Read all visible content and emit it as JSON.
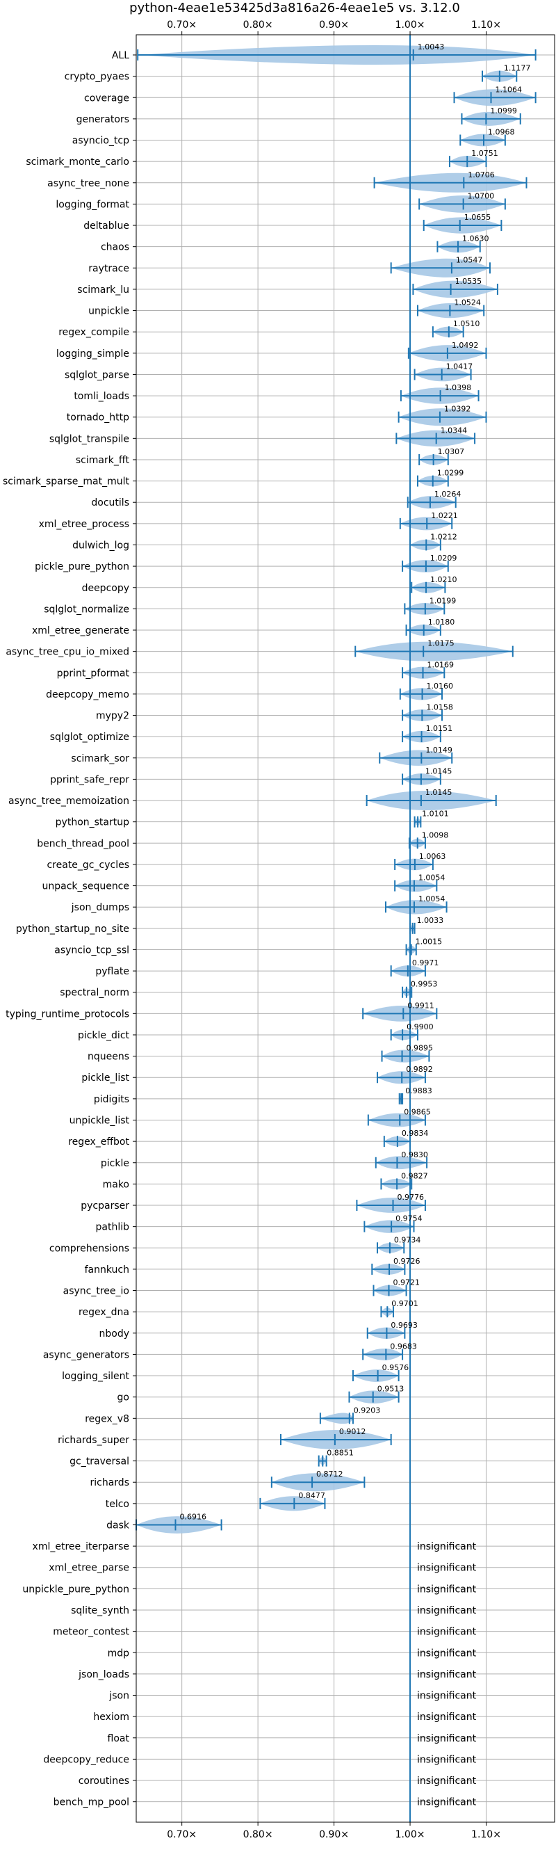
{
  "chart_data": {
    "type": "violin",
    "title": "python-4eae1e53425d3a816a26-4eae1e5 vs. 3.12.0",
    "xlabel": "",
    "ylabel": "",
    "x_tick_labels": [
      "0.70×",
      "0.80×",
      "0.90×",
      "1.00×",
      "1.10×"
    ],
    "x_ticks": [
      0.7,
      0.8,
      0.9,
      1.0,
      1.1
    ],
    "xlim": [
      0.64,
      1.19
    ],
    "reference_line": 1.0,
    "grid": true,
    "colors": {
      "line": "#1f77b4",
      "violin": "#a6c8e6",
      "grid": "#b0b0b0"
    },
    "insignificant_label": "insignificant",
    "benchmarks": [
      {
        "name": "ALL",
        "value": 1.0043,
        "min": 0.642,
        "max": 1.165
      },
      {
        "name": "crypto_pyaes",
        "value": 1.1177,
        "min": 1.095,
        "max": 1.14
      },
      {
        "name": "coverage",
        "value": 1.1064,
        "min": 1.058,
        "max": 1.165
      },
      {
        "name": "generators",
        "value": 1.0999,
        "min": 1.068,
        "max": 1.145
      },
      {
        "name": "asyncio_tcp",
        "value": 1.0968,
        "min": 1.066,
        "max": 1.125
      },
      {
        "name": "scimark_monte_carlo",
        "value": 1.0751,
        "min": 1.052,
        "max": 1.1
      },
      {
        "name": "async_tree_none",
        "value": 1.0706,
        "min": 0.953,
        "max": 1.153
      },
      {
        "name": "logging_format",
        "value": 1.07,
        "min": 1.012,
        "max": 1.125
      },
      {
        "name": "deltablue",
        "value": 1.0655,
        "min": 1.018,
        "max": 1.12
      },
      {
        "name": "chaos",
        "value": 1.063,
        "min": 1.036,
        "max": 1.092
      },
      {
        "name": "raytrace",
        "value": 1.0547,
        "min": 0.975,
        "max": 1.105
      },
      {
        "name": "scimark_lu",
        "value": 1.0535,
        "min": 1.004,
        "max": 1.115
      },
      {
        "name": "unpickle",
        "value": 1.0524,
        "min": 1.01,
        "max": 1.097
      },
      {
        "name": "regex_compile",
        "value": 1.051,
        "min": 1.03,
        "max": 1.07
      },
      {
        "name": "logging_simple",
        "value": 1.0492,
        "min": 0.998,
        "max": 1.1
      },
      {
        "name": "sqlglot_parse",
        "value": 1.0417,
        "min": 1.006,
        "max": 1.08
      },
      {
        "name": "tomli_loads",
        "value": 1.0398,
        "min": 0.988,
        "max": 1.09
      },
      {
        "name": "tornado_http",
        "value": 1.0392,
        "min": 0.985,
        "max": 1.1
      },
      {
        "name": "sqlglot_transpile",
        "value": 1.0344,
        "min": 0.982,
        "max": 1.085
      },
      {
        "name": "scimark_fft",
        "value": 1.0307,
        "min": 1.012,
        "max": 1.05
      },
      {
        "name": "scimark_sparse_mat_mult",
        "value": 1.0299,
        "min": 1.01,
        "max": 1.05
      },
      {
        "name": "docutils",
        "value": 1.0264,
        "min": 0.997,
        "max": 1.06
      },
      {
        "name": "xml_etree_process",
        "value": 1.0221,
        "min": 0.987,
        "max": 1.055
      },
      {
        "name": "dulwich_log",
        "value": 1.0212,
        "min": 1.0,
        "max": 1.04
      },
      {
        "name": "pickle_pure_python",
        "value": 1.0209,
        "min": 0.99,
        "max": 1.05
      },
      {
        "name": "deepcopy",
        "value": 1.021,
        "min": 1.002,
        "max": 1.046
      },
      {
        "name": "sqlglot_normalize",
        "value": 1.0199,
        "min": 0.993,
        "max": 1.045
      },
      {
        "name": "xml_etree_generate",
        "value": 1.018,
        "min": 0.995,
        "max": 1.04
      },
      {
        "name": "async_tree_cpu_io_mixed",
        "value": 1.0175,
        "min": 0.928,
        "max": 1.135
      },
      {
        "name": "pprint_pformat",
        "value": 1.0169,
        "min": 0.99,
        "max": 1.045
      },
      {
        "name": "deepcopy_memo",
        "value": 1.016,
        "min": 0.987,
        "max": 1.042
      },
      {
        "name": "mypy2",
        "value": 1.0158,
        "min": 0.99,
        "max": 1.042
      },
      {
        "name": "sqlglot_optimize",
        "value": 1.0151,
        "min": 0.99,
        "max": 1.04
      },
      {
        "name": "scimark_sor",
        "value": 1.0149,
        "min": 0.96,
        "max": 1.055
      },
      {
        "name": "pprint_safe_repr",
        "value": 1.0145,
        "min": 0.99,
        "max": 1.04
      },
      {
        "name": "async_tree_memoization",
        "value": 1.0145,
        "min": 0.943,
        "max": 1.113
      },
      {
        "name": "python_startup",
        "value": 1.0101,
        "min": 1.006,
        "max": 1.014
      },
      {
        "name": "bench_thread_pool",
        "value": 1.0098,
        "min": 0.999,
        "max": 1.02
      },
      {
        "name": "create_gc_cycles",
        "value": 1.0063,
        "min": 0.98,
        "max": 1.03
      },
      {
        "name": "unpack_sequence",
        "value": 1.0054,
        "min": 0.98,
        "max": 1.035
      },
      {
        "name": "json_dumps",
        "value": 1.0054,
        "min": 0.968,
        "max": 1.048
      },
      {
        "name": "python_startup_no_site",
        "value": 1.0033,
        "min": 1.0,
        "max": 1.006
      },
      {
        "name": "asyncio_tcp_ssl",
        "value": 1.0015,
        "min": 0.995,
        "max": 1.008
      },
      {
        "name": "pyflate",
        "value": 0.9971,
        "min": 0.975,
        "max": 1.02
      },
      {
        "name": "spectral_norm",
        "value": 0.9953,
        "min": 0.99,
        "max": 1.002
      },
      {
        "name": "typing_runtime_protocols",
        "value": 0.9911,
        "min": 0.938,
        "max": 1.035
      },
      {
        "name": "pickle_dict",
        "value": 0.99,
        "min": 0.975,
        "max": 1.01
      },
      {
        "name": "nqueens",
        "value": 0.9895,
        "min": 0.963,
        "max": 1.025
      },
      {
        "name": "pickle_list",
        "value": 0.9892,
        "min": 0.957,
        "max": 1.02
      },
      {
        "name": "pidigits",
        "value": 0.9883,
        "min": 0.986,
        "max": 0.99
      },
      {
        "name": "unpickle_list",
        "value": 0.9865,
        "min": 0.945,
        "max": 1.02
      },
      {
        "name": "regex_effbot",
        "value": 0.9834,
        "min": 0.966,
        "max": 1.0
      },
      {
        "name": "pickle",
        "value": 0.983,
        "min": 0.955,
        "max": 1.022
      },
      {
        "name": "mako",
        "value": 0.9827,
        "min": 0.962,
        "max": 1.002
      },
      {
        "name": "pycparser",
        "value": 0.9776,
        "min": 0.93,
        "max": 1.02
      },
      {
        "name": "pathlib",
        "value": 0.9754,
        "min": 0.94,
        "max": 1.005
      },
      {
        "name": "comprehensions",
        "value": 0.9734,
        "min": 0.957,
        "max": 0.992
      },
      {
        "name": "fannkuch",
        "value": 0.9726,
        "min": 0.95,
        "max": 0.993
      },
      {
        "name": "async_tree_io",
        "value": 0.9721,
        "min": 0.952,
        "max": 0.995
      },
      {
        "name": "regex_dna",
        "value": 0.9701,
        "min": 0.962,
        "max": 0.978
      },
      {
        "name": "nbody",
        "value": 0.9693,
        "min": 0.944,
        "max": 0.993
      },
      {
        "name": "async_generators",
        "value": 0.9683,
        "min": 0.938,
        "max": 0.99
      },
      {
        "name": "logging_silent",
        "value": 0.9576,
        "min": 0.925,
        "max": 0.985
      },
      {
        "name": "go",
        "value": 0.9513,
        "min": 0.92,
        "max": 0.985
      },
      {
        "name": "regex_v8",
        "value": 0.9203,
        "min": 0.882,
        "max": 0.925
      },
      {
        "name": "richards_super",
        "value": 0.9012,
        "min": 0.83,
        "max": 0.975
      },
      {
        "name": "gc_traversal",
        "value": 0.8851,
        "min": 0.88,
        "max": 0.89
      },
      {
        "name": "richards",
        "value": 0.8712,
        "min": 0.818,
        "max": 0.94
      },
      {
        "name": "telco",
        "value": 0.8477,
        "min": 0.803,
        "max": 0.888
      },
      {
        "name": "dask",
        "value": 0.6916,
        "min": 0.64,
        "max": 0.752
      },
      {
        "name": "xml_etree_iterparse",
        "insignificant": true
      },
      {
        "name": "xml_etree_parse",
        "insignificant": true
      },
      {
        "name": "unpickle_pure_python",
        "insignificant": true
      },
      {
        "name": "sqlite_synth",
        "insignificant": true
      },
      {
        "name": "meteor_contest",
        "insignificant": true
      },
      {
        "name": "mdp",
        "insignificant": true
      },
      {
        "name": "json_loads",
        "insignificant": true
      },
      {
        "name": "json",
        "insignificant": true
      },
      {
        "name": "hexiom",
        "insignificant": true
      },
      {
        "name": "float",
        "insignificant": true
      },
      {
        "name": "deepcopy_reduce",
        "insignificant": true
      },
      {
        "name": "coroutines",
        "insignificant": true
      },
      {
        "name": "bench_mp_pool",
        "insignificant": true
      }
    ]
  }
}
